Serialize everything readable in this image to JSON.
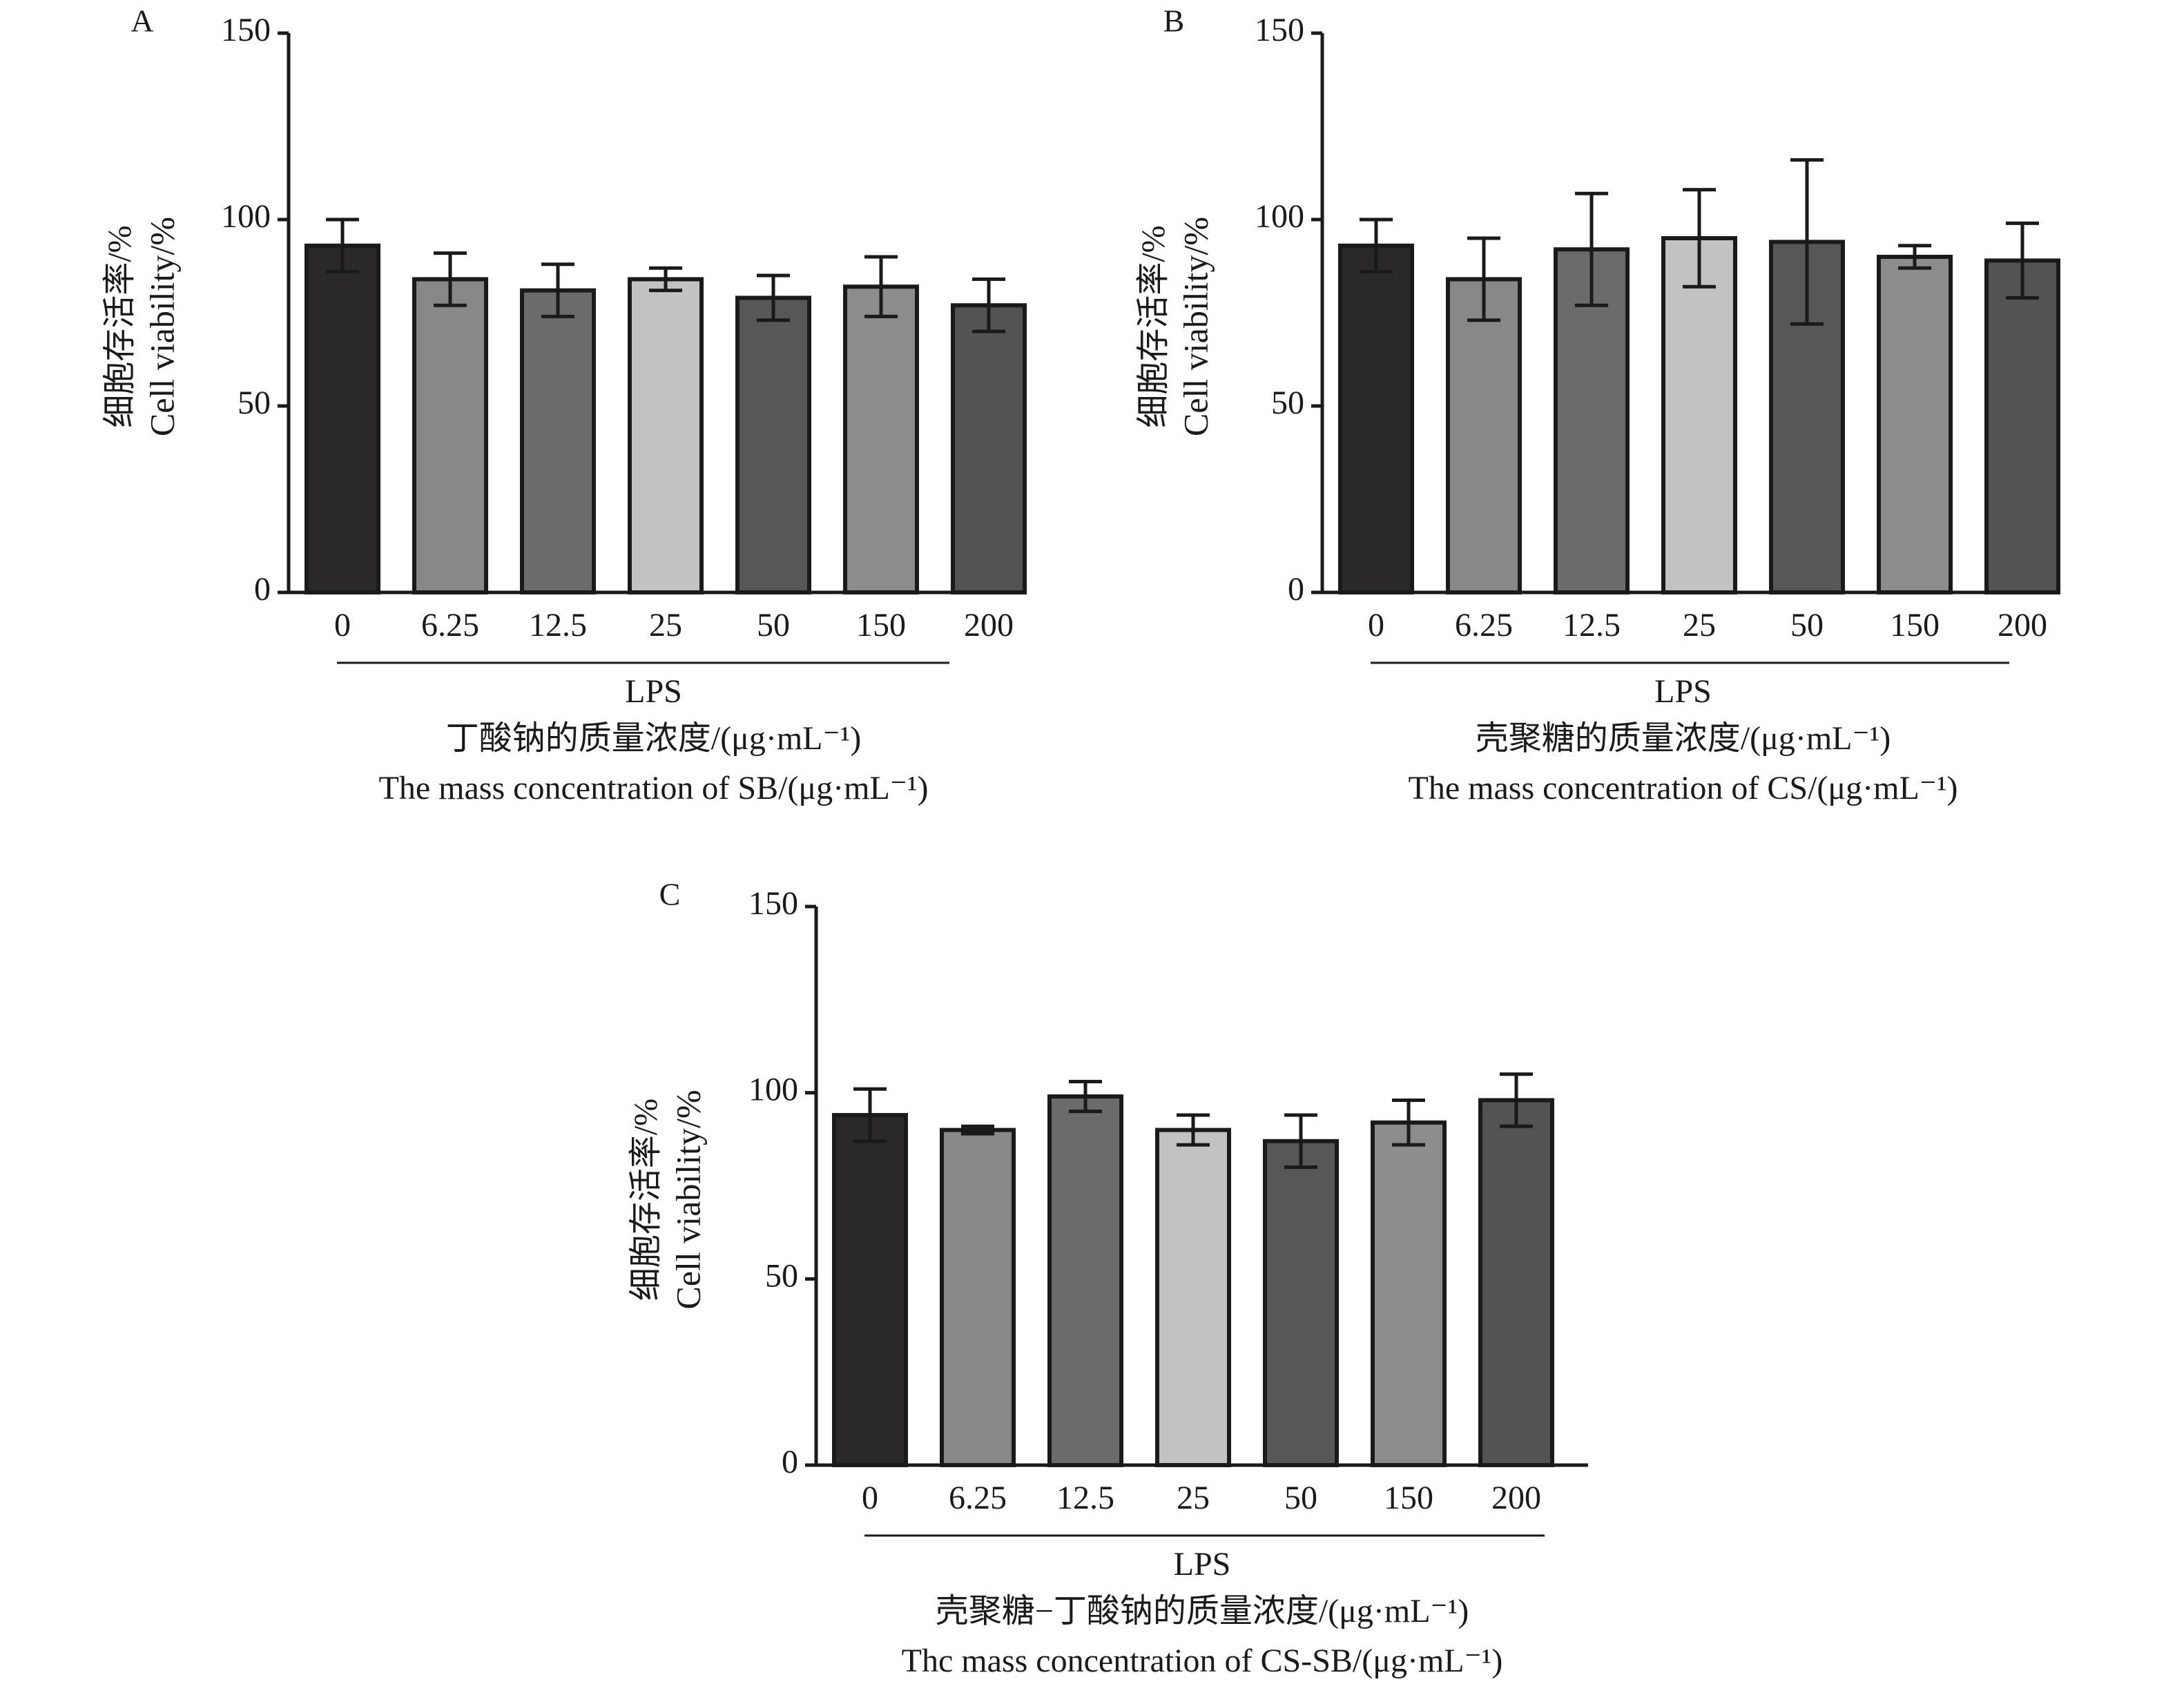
{
  "colors": {
    "axis": "#1a1a1a",
    "bar_outline": "#1a1a1a",
    "error_bar": "#1a1a1a",
    "bar_fills": [
      "#2b2829",
      "#878787",
      "#6b6b6b",
      "#c2c2c2",
      "#575757",
      "#8c8c8c",
      "#535353"
    ]
  },
  "chart_data": [
    {
      "type": "bar",
      "panel_label": "A",
      "categories": [
        "0",
        "6.25",
        "12.5",
        "25",
        "50",
        "150",
        "200"
      ],
      "values": [
        93,
        84,
        81,
        84,
        79,
        82,
        77
      ],
      "errors": [
        7,
        7,
        7,
        3,
        6,
        8,
        7
      ],
      "ylim": [
        0,
        150
      ],
      "yticks": [
        "0",
        "50",
        "100",
        "150"
      ],
      "ylabel_cn": "细胞存活率/%",
      "ylabel_en": "Cell viability/%",
      "group_label": "LPS",
      "xlabel_cn": "丁酸钠的质量浓度/(μg·mL⁻¹)",
      "xlabel_en": "The mass concentration of SB/(μg·mL⁻¹)",
      "grid": false,
      "legend": "none"
    },
    {
      "type": "bar",
      "panel_label": "B",
      "categories": [
        "0",
        "6.25",
        "12.5",
        "25",
        "50",
        "150",
        "200"
      ],
      "values": [
        93,
        84,
        92,
        95,
        94,
        90,
        89
      ],
      "errors": [
        7,
        11,
        15,
        13,
        22,
        3,
        10
      ],
      "ylim": [
        0,
        150
      ],
      "yticks": [
        "0",
        "50",
        "100",
        "150"
      ],
      "ylabel_cn": "细胞存活率/%",
      "ylabel_en": "Cell viability/%",
      "group_label": "LPS",
      "xlabel_cn": "壳聚糖的质量浓度/(μg·mL⁻¹)",
      "xlabel_en": "The mass concentration of CS/(μg·mL⁻¹)",
      "grid": false,
      "legend": "none"
    },
    {
      "type": "bar",
      "panel_label": "C",
      "categories": [
        "0",
        "6.25",
        "12.5",
        "25",
        "50",
        "150",
        "200"
      ],
      "values": [
        94,
        90,
        99,
        90,
        87,
        92,
        98
      ],
      "errors": [
        7,
        1,
        4,
        4,
        7,
        6,
        7
      ],
      "ylim": [
        0,
        150
      ],
      "yticks": [
        "0",
        "50",
        "100",
        "150"
      ],
      "ylabel_cn": "细胞存活率/%",
      "ylabel_en": "Cell viability/%",
      "group_label": "LPS",
      "xlabel_cn": "壳聚糖−丁酸钠的质量浓度/(μg·mL⁻¹)",
      "xlabel_en": "Thc mass concentration of CS-SB/(μg·mL⁻¹)",
      "grid": false,
      "legend": "none"
    }
  ]
}
